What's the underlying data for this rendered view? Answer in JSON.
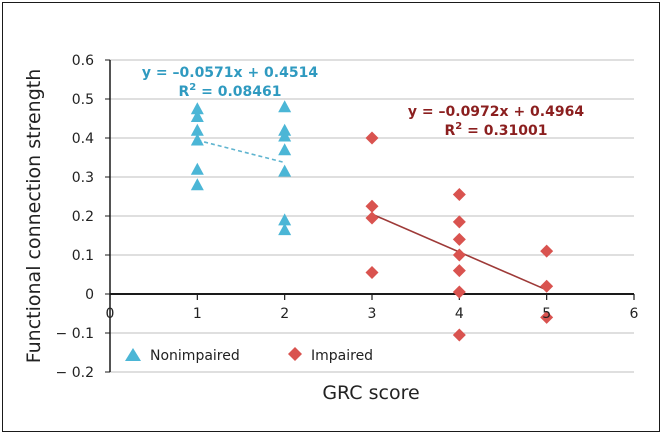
{
  "chart_data": {
    "type": "scatter",
    "title": "",
    "xlabel": "GRC score",
    "ylabel": "Functional connection strength",
    "xlim": [
      0,
      6
    ],
    "ylim": [
      -0.2,
      0.6
    ],
    "xticks": [
      0,
      1,
      2,
      3,
      4,
      5,
      6
    ],
    "yticks": [
      0.6,
      0.5,
      0.4,
      0.3,
      0.2,
      0.1,
      0,
      -0.1,
      -0.2
    ],
    "ytick_labels": [
      "0.6",
      "0.5",
      "0.4",
      "0.3",
      "0.2",
      "0.1",
      "0",
      "− 0.1",
      "− 0.2"
    ],
    "grid": "horizontal",
    "legend": "bottom-left",
    "series": [
      {
        "name": "Nonimpaired",
        "marker": "triangle",
        "color": "#4bb6d6",
        "points": [
          [
            1,
            0.475
          ],
          [
            1,
            0.455
          ],
          [
            1,
            0.42
          ],
          [
            1,
            0.395
          ],
          [
            1,
            0.32
          ],
          [
            1,
            0.28
          ],
          [
            2,
            0.48
          ],
          [
            2,
            0.42
          ],
          [
            2,
            0.405
          ],
          [
            2,
            0.37
          ],
          [
            2,
            0.315
          ],
          [
            2,
            0.19
          ],
          [
            2,
            0.165
          ]
        ],
        "trendline": {
          "x": [
            1,
            2
          ],
          "equation": "y = –0.0571x + 0.4514",
          "r2_label": "R",
          "r2_sup": "2",
          "r2_value": " = 0.08461",
          "style": "dashed"
        }
      },
      {
        "name": "Impaired",
        "marker": "diamond",
        "color": "#d9534f",
        "points": [
          [
            3,
            0.4
          ],
          [
            3,
            0.225
          ],
          [
            3,
            0.195
          ],
          [
            3,
            0.055
          ],
          [
            4,
            0.255
          ],
          [
            4,
            0.185
          ],
          [
            4,
            0.14
          ],
          [
            4,
            0.1
          ],
          [
            4,
            0.06
          ],
          [
            4,
            0.005
          ],
          [
            4,
            -0.105
          ],
          [
            5,
            0.11
          ],
          [
            5,
            0.02
          ],
          [
            5,
            -0.06
          ]
        ],
        "trendline": {
          "x": [
            3,
            5
          ],
          "equation": "y = –0.0972x + 0.4964",
          "r2_label": "R",
          "r2_sup": "2",
          "r2_value": " = 0.31001",
          "style": "solid"
        }
      }
    ]
  },
  "colors": {
    "blue_line": "#5fb4cf",
    "blue_text": "#2f9ac0",
    "red_line": "#9e3a38",
    "red_text": "#8b1f1f",
    "grid": "#bfbfbf",
    "axis": "#1a1a1a"
  }
}
